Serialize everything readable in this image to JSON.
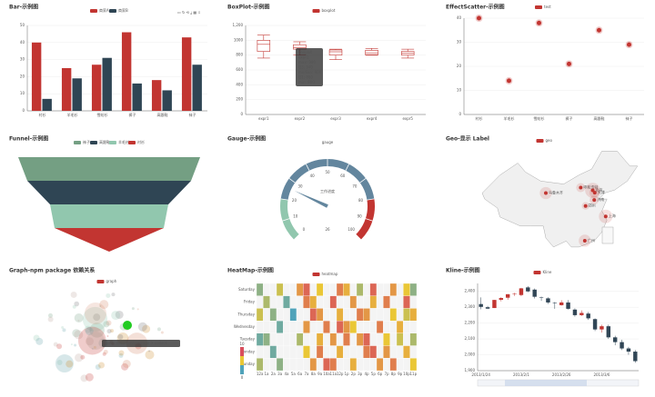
{
  "chart_data": [
    {
      "type": "bar",
      "title": "Bar-示例图",
      "categories": [
        "衬衫",
        "羊毛衫",
        "雪纺衫",
        "裤子",
        "高跟鞋",
        "袜子"
      ],
      "series": [
        {
          "name": "商家A",
          "color": "#c23531",
          "values": [
            40,
            25,
            27,
            46,
            18,
            43
          ]
        },
        {
          "name": "商家B",
          "color": "#2f4554",
          "values": [
            7,
            19,
            31,
            16,
            12,
            27
          ]
        }
      ],
      "ylim": [
        0,
        50
      ],
      "yticks": [
        0,
        10,
        20,
        30,
        40,
        50
      ]
    },
    {
      "type": "boxplot",
      "title": "BoxPlot-示例图",
      "categories": [
        "expr1",
        "expr2",
        "expr3",
        "expr4",
        "expr5"
      ],
      "series": [
        {
          "name": "boxplot",
          "color": "#c23531",
          "values": [
            [
              760,
              850,
              945,
              1000,
              1070
            ],
            [
              800,
              880,
              900,
              940,
              980
            ],
            [
              740,
              800,
              845,
              870,
              880
            ],
            [
              800,
              805,
              830,
              865,
              890
            ],
            [
              760,
              800,
              825,
              850,
              880
            ]
          ]
        }
      ],
      "ylim": [
        0,
        1200
      ],
      "yticks": [
        0,
        {
          "value": 200,
          "label": "200"
        },
        400,
        600,
        800,
        1000,
        {
          "value": 1200,
          "label": "1,200"
        }
      ],
      "tooltip": [
        "boxplot",
        "expr2",
        "max: 980",
        "Q3: 940",
        "median: 900",
        "Q1: 880",
        "min: 800"
      ]
    },
    {
      "type": "effectScatter",
      "title": "EffectScatter-示例图",
      "categories": [
        "衬衫",
        "羊毛衫",
        "雪纺衫",
        "裤子",
        "高跟鞋",
        "袜子"
      ],
      "series": [
        {
          "name": "test",
          "color": "#c23531",
          "values": [
            40,
            14,
            38,
            21,
            35,
            29
          ]
        }
      ],
      "ylim": [
        0,
        40
      ],
      "yticks": [
        0,
        10,
        20,
        30,
        40
      ]
    },
    {
      "type": "funnel",
      "title": "Funnel-示例图",
      "categories": [
        "袜子",
        "高跟鞋",
        "羊毛衫",
        "衬衫"
      ],
      "values": [
        100,
        90,
        65,
        60
      ],
      "colors": [
        "#749f83",
        "#2f4554",
        "#91c7ae",
        "#c23531"
      ]
    },
    {
      "type": "gauge",
      "title": "Gauge-示例图",
      "legend": "gauge",
      "name": "工作进度",
      "value": 26,
      "lim": [
        0,
        100
      ],
      "ticks": [
        0,
        10,
        20,
        30,
        40,
        50,
        60,
        70,
        80,
        90,
        100
      ],
      "bands": [
        {
          "to": 20,
          "color": "#91c7ae"
        },
        {
          "to": 80,
          "color": "#63869e"
        },
        {
          "to": 100,
          "color": "#c23531"
        }
      ]
    },
    {
      "type": "geo",
      "title": "Geo-显示 Label",
      "legend": "geo",
      "points": [
        {
          "name": "乌鲁木齐",
          "lon": 98,
          "lat": 39,
          "value": 40
        },
        {
          "name": "呼和浩特",
          "lon": 111.7,
          "lat": 40.8,
          "value": 30
        },
        {
          "name": "北京",
          "lon": 116.4,
          "lat": 39.9,
          "value": 50
        },
        {
          "name": "天津",
          "lon": 117.2,
          "lat": 39.1,
          "value": 35
        },
        {
          "name": "济南",
          "lon": 117,
          "lat": 36.7,
          "value": 30
        },
        {
          "name": "郑州",
          "lon": 113.6,
          "lat": 34.7,
          "value": 25
        },
        {
          "name": "上海",
          "lon": 121.5,
          "lat": 31.2,
          "value": 45
        },
        {
          "name": "广州",
          "lon": 113.3,
          "lat": 23.1,
          "value": 40
        }
      ],
      "color": "#c23531"
    },
    {
      "type": "graph",
      "title": "Graph-npm package 依赖关系",
      "legend": "graph",
      "tooltip": "node: document.storage > collect"
    },
    {
      "type": "heatmap",
      "title": "HeatMap-示例图",
      "legend": "heatmap",
      "categories": [
        "12a",
        "1a",
        "2a",
        "3a",
        "4a",
        "5a",
        "6a",
        "7a",
        "8a",
        "9a",
        "10a",
        "11a",
        "12p",
        "1p",
        "2p",
        "3p",
        "4p",
        "5p",
        "6p",
        "7p",
        "8p",
        "9p",
        "10p",
        "11p"
      ],
      "rows": [
        "Saturday",
        "Friday",
        "Thursday",
        "Wednesday",
        "Tuesday",
        "Monday",
        "Sunday"
      ],
      "values": [
        [
          2,
          null,
          null,
          4,
          null,
          null,
          7,
          9,
          null,
          5,
          null,
          null,
          8,
          6,
          null,
          3,
          null,
          9,
          null,
          null,
          7,
          null,
          5,
          2
        ],
        [
          null,
          3,
          null,
          null,
          1,
          null,
          null,
          8,
          6,
          null,
          null,
          9,
          null,
          null,
          7,
          null,
          null,
          6,
          null,
          8,
          null,
          null,
          9,
          null
        ],
        [
          4,
          null,
          2,
          null,
          null,
          0,
          null,
          null,
          9,
          7,
          null,
          null,
          6,
          null,
          null,
          8,
          7,
          null,
          null,
          null,
          5,
          null,
          4,
          6
        ],
        [
          null,
          null,
          null,
          1,
          null,
          null,
          null,
          7,
          null,
          null,
          8,
          null,
          9,
          7,
          5,
          null,
          null,
          null,
          8,
          null,
          null,
          6,
          null,
          null
        ],
        [
          1,
          2,
          null,
          null,
          null,
          null,
          3,
          null,
          null,
          6,
          null,
          7,
          null,
          8,
          null,
          7,
          9,
          null,
          null,
          5,
          null,
          4,
          null,
          3
        ],
        [
          null,
          null,
          1,
          null,
          null,
          null,
          null,
          5,
          null,
          8,
          null,
          null,
          6,
          null,
          null,
          null,
          8,
          9,
          null,
          7,
          null,
          null,
          6,
          null
        ],
        [
          3,
          null,
          null,
          2,
          null,
          null,
          null,
          null,
          7,
          null,
          9,
          8,
          null,
          null,
          6,
          null,
          null,
          null,
          7,
          null,
          8,
          null,
          null,
          5
        ]
      ],
      "vlim": [
        0,
        10
      ],
      "colors": [
        "#50a3ba",
        "#eac736",
        "#d94e5d"
      ]
    },
    {
      "type": "candlestick",
      "title": "Kline-示例图",
      "legend": "Kline",
      "up": "#c23531",
      "down": "#314656",
      "categories": [
        "2013/1/24",
        null,
        null,
        null,
        null,
        null,
        "2013/2/1",
        null,
        null,
        null,
        null,
        null,
        "2013/2/26",
        null,
        null,
        null,
        null,
        null,
        "2013/3/6",
        null,
        null,
        null,
        null,
        null
      ],
      "values": [
        [
          2320,
          2302,
          2287,
          2362
        ],
        [
          2300,
          2291,
          2288,
          2308
        ],
        [
          2295,
          2346,
          2295,
          2346
        ],
        [
          2347,
          2358,
          2337,
          2363
        ],
        [
          2360,
          2382,
          2347,
          2383
        ],
        [
          2383,
          2385,
          2371,
          2391
        ],
        [
          2377,
          2419,
          2369,
          2422
        ],
        [
          2425,
          2400,
          2395,
          2433
        ],
        [
          2411,
          2366,
          2355,
          2418
        ],
        [
          2362,
          2359,
          2340,
          2367
        ],
        [
          2356,
          2330,
          2321,
          2363
        ],
        [
          2328,
          2325,
          2290,
          2333
        ],
        [
          2313,
          2330,
          2310,
          2344
        ],
        [
          2330,
          2290,
          2285,
          2345
        ],
        [
          2285,
          2250,
          2240,
          2293
        ],
        [
          2250,
          2264,
          2245,
          2280
        ],
        [
          2260,
          2230,
          2220,
          2270
        ],
        [
          2225,
          2160,
          2150,
          2230
        ],
        [
          2160,
          2180,
          2140,
          2190
        ],
        [
          2180,
          2110,
          2100,
          2190
        ],
        [
          2110,
          2080,
          2060,
          2120
        ],
        [
          2080,
          2040,
          2030,
          2095
        ],
        [
          2040,
          2020,
          2000,
          2050
        ],
        [
          2020,
          1960,
          1950,
          2030
        ]
      ],
      "ylim": [
        1900,
        2450
      ],
      "yticks": [
        {
          "value": 1900,
          "label": "1,900"
        },
        {
          "value": 2000,
          "label": "2,000"
        },
        {
          "value": 2100,
          "label": "2,100"
        },
        {
          "value": 2200,
          "label": "2,200"
        },
        {
          "value": 2300,
          "label": "2,300"
        },
        {
          "value": 2400,
          "label": "2,400"
        }
      ]
    }
  ]
}
